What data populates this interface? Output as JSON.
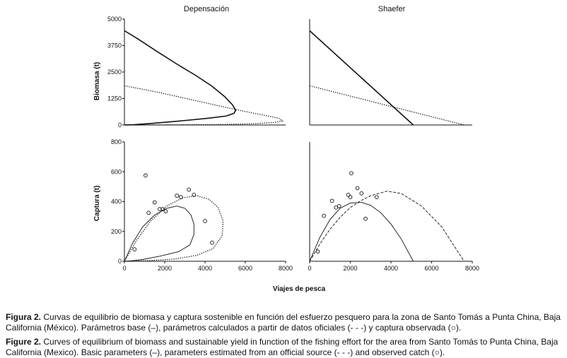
{
  "figure": {
    "panel_titles": {
      "left": "Depensación",
      "right": "Shaefer"
    },
    "shared_x_label": "Viajes de pesca"
  },
  "chart_data": [
    {
      "id": "biomass-depensacion",
      "type": "line",
      "title": "Depensación",
      "xlabel": "",
      "ylabel": "Biomasa (t)",
      "xlim": [
        0,
        5000
      ],
      "ylim": [
        0,
        5000
      ],
      "yticks": [
        "0",
        "1250",
        "2500",
        "3750",
        "5000"
      ],
      "series": [
        {
          "name": "Parámetros base (–)",
          "style": "solid",
          "x": [
            0,
            400,
            1000,
            1600,
            2200,
            2700,
            3100,
            3350,
            3450,
            3400,
            3150,
            2600,
            1800,
            900,
            300,
            0
          ],
          "y": [
            4450,
            4080,
            3480,
            2900,
            2350,
            1850,
            1350,
            950,
            700,
            550,
            420,
            320,
            200,
            80,
            15,
            0
          ]
        },
        {
          "name": "Parámetros oficiales (- - -)",
          "style": "dotted",
          "x": [
            0,
            1000,
            2000,
            3000,
            3800,
            4400,
            4800,
            4900,
            4650,
            4000,
            3000,
            1500,
            0
          ],
          "y": [
            1850,
            1560,
            1220,
            880,
            620,
            440,
            310,
            190,
            120,
            60,
            25,
            5,
            0
          ]
        }
      ]
    },
    {
      "id": "biomass-shaefer",
      "type": "line",
      "title": "Shaefer",
      "xlabel": "",
      "ylabel": "",
      "xlim": [
        0,
        8000
      ],
      "ylim": [
        0,
        5000
      ],
      "series": [
        {
          "name": "Parámetros base (–)",
          "style": "solid",
          "x": [
            0,
            5100
          ],
          "y": [
            4450,
            0
          ]
        },
        {
          "name": "Parámetros oficiales (- - -)",
          "style": "dotted",
          "x": [
            0,
            7600
          ],
          "y": [
            1850,
            0
          ]
        }
      ]
    },
    {
      "id": "capture-depensacion",
      "type": "line",
      "title": "",
      "xlabel": "Viajes de pesca",
      "ylabel": "Captura (t)",
      "xlim": [
        0,
        8000
      ],
      "ylim": [
        0,
        800
      ],
      "xticks": [
        "0",
        "2000",
        "4000",
        "6000",
        "8000"
      ],
      "yticks": [
        "0",
        "200",
        "400",
        "600",
        "800"
      ],
      "series": [
        {
          "name": "Parámetros base (–)",
          "style": "solid",
          "x": [
            0,
            400,
            900,
            1500,
            2100,
            2600,
            3000,
            3300,
            3450,
            3450,
            3250,
            2700,
            1800,
            900,
            300,
            0
          ],
          "y": [
            0,
            120,
            230,
            310,
            355,
            370,
            355,
            310,
            250,
            180,
            110,
            65,
            35,
            12,
            3,
            0
          ]
        },
        {
          "name": "Parámetros oficiales (- - -)",
          "style": "dotted",
          "x": [
            0,
            600,
            1300,
            2100,
            2900,
            3600,
            4200,
            4650,
            4900,
            4850,
            4400,
            3600,
            2500,
            1300,
            400,
            0
          ],
          "y": [
            0,
            140,
            270,
            370,
            425,
            440,
            415,
            360,
            270,
            170,
            85,
            40,
            15,
            5,
            1,
            0
          ]
        },
        {
          "name": "Captura observada (○)",
          "style": "scatter",
          "x": [
            500,
            1050,
            1200,
            1500,
            1750,
            1900,
            2050,
            2600,
            2800,
            3200,
            3450,
            4000,
            4350
          ],
          "y": [
            80,
            575,
            325,
            395,
            350,
            350,
            335,
            440,
            430,
            480,
            445,
            270,
            125
          ]
        }
      ]
    },
    {
      "id": "capture-shaefer",
      "type": "line",
      "title": "",
      "xlabel": "",
      "ylabel": "",
      "xlim": [
        0,
        8000
      ],
      "ylim": [
        0,
        800
      ],
      "xticks": [
        "0",
        "2000",
        "4000",
        "6000",
        "8000"
      ],
      "series": [
        {
          "name": "Parámetros base (–)",
          "style": "solid",
          "x": [
            0,
            500,
            1000,
            1500,
            2000,
            2550,
            3000,
            3500,
            4000,
            4500,
            5100
          ],
          "y": [
            0,
            160,
            280,
            355,
            390,
            395,
            375,
            325,
            250,
            150,
            0
          ]
        },
        {
          "name": "Parámetros oficiales (- - -)",
          "style": "dashed",
          "x": [
            0,
            500,
            1000,
            1500,
            2000,
            2500,
            3000,
            3800,
            4500,
            5500,
            6500,
            7600
          ],
          "y": [
            0,
            115,
            215,
            295,
            360,
            405,
            440,
            470,
            455,
            370,
            230,
            0
          ]
        },
        {
          "name": "Captura observada (○)",
          "style": "scatter",
          "x": [
            400,
            700,
            1100,
            1300,
            1450,
            1900,
            2000,
            2050,
            2350,
            2550,
            2750,
            3300
          ],
          "y": [
            65,
            305,
            405,
            360,
            370,
            445,
            430,
            590,
            490,
            455,
            285,
            430
          ]
        }
      ]
    }
  ],
  "captions": {
    "es": {
      "label": "Figura 2.",
      "text": " Curvas de equilibrio de biomasa y captura sostenible en función del esfuerzo pesquero para la zona de Santo Tomás a Punta China, Baja California (México). Parámetros base (–), parámetros calculados a partir de datos oficiales (- - -) y captura observada (○)."
    },
    "en": {
      "label": "Figure 2.",
      "text": " Curves of equilibrium of biomass and sustainable yield in function of the fishing effort for the area from Santo Tomás to Punta China, Baja California (Mexico). Basic parameters (–), parameters estimated from an official source (- - -) and observed catch (○)."
    }
  }
}
